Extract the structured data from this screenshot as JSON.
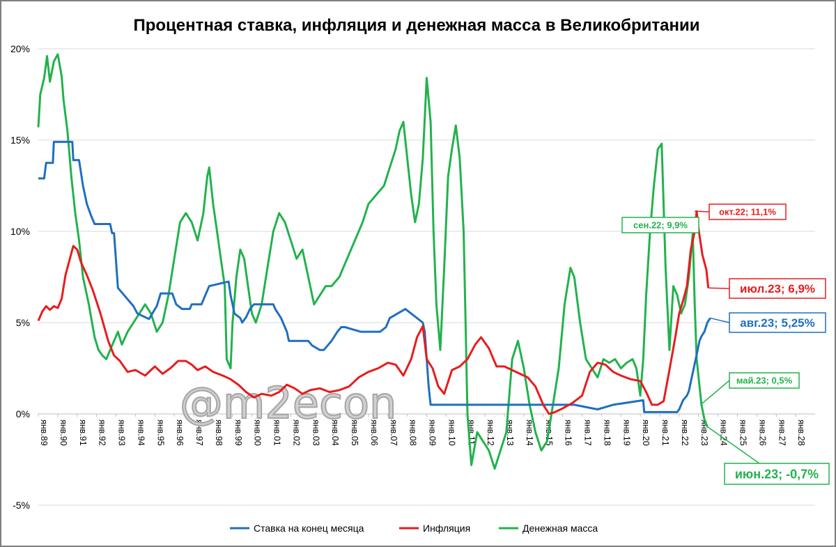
{
  "chart_data": {
    "type": "line",
    "title": "Процентная ставка, инфляция и денежная масса в Великобритании",
    "ylim": [
      -5,
      20
    ],
    "yticks": [
      "-5%",
      "0%",
      "5%",
      "10%",
      "15%",
      "20%"
    ],
    "ytick_values": [
      -5,
      0,
      5,
      10,
      15,
      20
    ],
    "xlim": [
      1989.0,
      2029.0
    ],
    "xticks": [
      "янв.89",
      "янв.90",
      "янв.91",
      "янв.92",
      "янв.93",
      "янв.94",
      "янв.95",
      "янв.96",
      "янв.97",
      "янв.98",
      "янв.99",
      "янв.00",
      "янв.01",
      "янв.02",
      "янв.03",
      "янв.04",
      "янв.05",
      "янв.06",
      "янв.07",
      "янв.08",
      "янв.09",
      "янв.10",
      "янв.11",
      "янв.12",
      "янв.13",
      "янв.14",
      "янв.15",
      "янв.16",
      "янв.17",
      "янв.18",
      "янв.19",
      "янв.20",
      "янв.21",
      "янв.22",
      "янв.23",
      "янв.24",
      "янв.25",
      "янв.26",
      "янв.27",
      "янв.28"
    ],
    "grid": true,
    "legend_position": "bottom",
    "watermark": "@m2econ",
    "series": [
      {
        "name": "Ставка на конец месяца",
        "color": "#1f6fbf",
        "x": [
          1989.0,
          1989.3,
          1989.4,
          1989.75,
          1989.8,
          1990.75,
          1990.8,
          1991.1,
          1991.3,
          1991.5,
          1991.7,
          1991.9,
          1992.7,
          1992.8,
          1992.9,
          1993.1,
          1993.9,
          1994.1,
          1994.7,
          1995.1,
          1995.3,
          1995.9,
          1996.1,
          1996.4,
          1996.8,
          1996.9,
          1997.4,
          1997.6,
          1997.8,
          1998.8,
          1998.9,
          1999.0,
          1999.1,
          1999.4,
          1999.5,
          1999.7,
          1999.9,
          2000.1,
          2001.1,
          2001.2,
          2001.5,
          2001.8,
          2001.9,
          2002.9,
          2003.1,
          2003.5,
          2003.7,
          2003.9,
          2004.1,
          2004.4,
          2004.6,
          2004.8,
          2005.6,
          2006.6,
          2006.9,
          2007.1,
          2007.5,
          2007.9,
          2008.2,
          2008.8,
          2008.9,
          2009.0,
          2009.1,
          2009.2,
          2016.6,
          2017.8,
          2018.6,
          2020.15,
          2020.2,
          2021.9,
          2022.0,
          2022.1,
          2022.2,
          2022.4,
          2022.5,
          2022.6,
          2022.7,
          2022.85,
          2022.95,
          2023.05,
          2023.15,
          2023.3,
          2023.45,
          2023.6
        ],
        "values": [
          12.9,
          12.9,
          13.75,
          13.75,
          14.9,
          14.9,
          13.9,
          13.9,
          12.5,
          11.5,
          10.9,
          10.4,
          10.4,
          9.9,
          9.9,
          6.9,
          5.9,
          5.5,
          5.2,
          5.9,
          6.6,
          6.6,
          6.0,
          5.75,
          5.75,
          6.0,
          6.0,
          6.5,
          7.0,
          7.25,
          6.5,
          6.0,
          5.5,
          5.25,
          5.0,
          5.3,
          5.75,
          6.0,
          6.0,
          5.75,
          5.25,
          4.5,
          4.0,
          4.0,
          3.75,
          3.5,
          3.5,
          3.75,
          4.0,
          4.5,
          4.75,
          4.75,
          4.5,
          4.5,
          4.75,
          5.25,
          5.5,
          5.75,
          5.5,
          5.0,
          4.5,
          3.0,
          1.5,
          0.5,
          0.5,
          0.25,
          0.5,
          0.75,
          0.1,
          0.1,
          0.25,
          0.5,
          0.75,
          1.0,
          1.25,
          1.75,
          2.25,
          3.0,
          3.5,
          4.0,
          4.25,
          4.5,
          5.0,
          5.25
        ]
      },
      {
        "name": "Инфляция",
        "color": "#e81c1c",
        "x": [
          1989.0,
          1989.2,
          1989.4,
          1989.6,
          1989.8,
          1990.0,
          1990.2,
          1990.4,
          1990.6,
          1990.8,
          1991.0,
          1991.2,
          1991.5,
          1991.8,
          1992.2,
          1992.6,
          1992.9,
          1993.2,
          1993.6,
          1994.0,
          1994.5,
          1995.0,
          1995.4,
          1995.8,
          1996.2,
          1996.6,
          1996.9,
          1997.2,
          1997.6,
          1998.0,
          1998.5,
          1998.9,
          1999.3,
          1999.7,
          2000.1,
          2000.5,
          2001.0,
          2001.4,
          2001.8,
          2002.2,
          2002.6,
          2003.0,
          2003.5,
          2004.0,
          2004.5,
          2005.0,
          2005.5,
          2006.0,
          2006.5,
          2007.0,
          2007.4,
          2007.8,
          2008.2,
          2008.5,
          2008.8,
          2009.0,
          2009.3,
          2009.6,
          2009.9,
          2010.3,
          2010.7,
          2011.1,
          2011.5,
          2011.8,
          2012.2,
          2012.6,
          2013.0,
          2013.4,
          2013.8,
          2014.2,
          2014.6,
          2015.0,
          2015.3,
          2015.6,
          2016.0,
          2016.5,
          2017.0,
          2017.4,
          2017.8,
          2018.2,
          2018.6,
          2019.0,
          2019.5,
          2020.0,
          2020.3,
          2020.6,
          2020.9,
          2021.2,
          2021.5,
          2021.8,
          2022.0,
          2022.2,
          2022.4,
          2022.6,
          2022.8,
          2022.9,
          2023.0,
          2023.2,
          2023.4,
          2023.5
        ],
        "values": [
          5.1,
          5.6,
          5.9,
          5.7,
          5.9,
          5.8,
          6.3,
          7.6,
          8.4,
          9.2,
          9.0,
          8.3,
          7.6,
          6.8,
          5.5,
          4.0,
          3.2,
          2.9,
          2.3,
          2.4,
          2.1,
          2.6,
          2.2,
          2.5,
          2.9,
          2.9,
          2.7,
          2.4,
          2.6,
          2.3,
          2.1,
          1.9,
          1.6,
          1.2,
          0.9,
          1.1,
          1.0,
          1.2,
          1.6,
          1.4,
          1.1,
          1.3,
          1.4,
          1.2,
          1.3,
          1.5,
          2.0,
          2.3,
          2.5,
          2.8,
          2.7,
          2.1,
          3.0,
          4.2,
          4.8,
          3.0,
          2.5,
          1.5,
          1.1,
          2.4,
          2.6,
          3.0,
          3.8,
          4.2,
          3.6,
          2.6,
          2.6,
          2.4,
          2.2,
          2.0,
          1.5,
          0.5,
          0.0,
          0.1,
          0.3,
          0.6,
          1.0,
          2.3,
          2.8,
          2.7,
          2.3,
          2.1,
          1.9,
          1.8,
          1.2,
          0.5,
          0.5,
          0.7,
          2.4,
          4.2,
          5.5,
          6.2,
          7.0,
          9.0,
          10.0,
          11.1,
          10.1,
          8.7,
          7.9,
          6.9
        ]
      },
      {
        "name": "Денежная масса",
        "color": "#22b24c",
        "x": [
          1989.0,
          1989.1,
          1989.3,
          1989.45,
          1989.6,
          1989.8,
          1990.0,
          1990.2,
          1990.3,
          1990.5,
          1990.7,
          1990.9,
          1991.1,
          1991.3,
          1991.6,
          1991.9,
          1992.1,
          1992.3,
          1992.5,
          1992.7,
          1992.9,
          1993.1,
          1993.3,
          1993.6,
          1993.9,
          1994.2,
          1994.5,
          1994.8,
          1995.1,
          1995.4,
          1995.7,
          1996.0,
          1996.3,
          1996.6,
          1996.9,
          1997.2,
          1997.4,
          1997.5,
          1997.6,
          1997.7,
          1997.8,
          1997.9,
          1998.0,
          1998.2,
          1998.4,
          1998.6,
          1998.7,
          1998.9,
          1999.0,
          1999.2,
          1999.4,
          1999.6,
          1999.8,
          2000.0,
          2000.2,
          2000.5,
          2000.8,
          2001.1,
          2001.4,
          2001.7,
          2002.0,
          2002.3,
          2002.6,
          2002.9,
          2003.2,
          2003.5,
          2003.8,
          2004.1,
          2004.5,
          2004.9,
          2005.3,
          2005.7,
          2006.0,
          2006.4,
          2006.8,
          2007.1,
          2007.4,
          2007.6,
          2007.8,
          2008.0,
          2008.2,
          2008.4,
          2008.6,
          2008.8,
          2009.0,
          2009.2,
          2009.35,
          2009.5,
          2009.7,
          2009.9,
          2010.1,
          2010.3,
          2010.5,
          2010.7,
          2010.9,
          2011.0,
          2011.1,
          2011.3,
          2011.6,
          2011.9,
          2012.2,
          2012.5,
          2012.8,
          2013.1,
          2013.4,
          2013.7,
          2014.0,
          2014.3,
          2014.6,
          2014.9,
          2015.2,
          2015.5,
          2015.8,
          2016.1,
          2016.4,
          2016.6,
          2016.9,
          2017.2,
          2017.5,
          2017.8,
          2018.1,
          2018.4,
          2018.7,
          2019.0,
          2019.3,
          2019.6,
          2019.8,
          2020.0,
          2020.15,
          2020.3,
          2020.5,
          2020.7,
          2020.9,
          2021.1,
          2021.3,
          2021.5,
          2021.7,
          2021.9,
          2022.1,
          2022.3,
          2022.5,
          2022.7,
          2022.8,
          2022.9,
          2023.0,
          2023.15,
          2023.3,
          2023.45
        ],
        "values": [
          15.7,
          17.5,
          18.4,
          19.6,
          18.2,
          19.3,
          19.7,
          18.5,
          17.2,
          15.5,
          13.0,
          11.0,
          9.5,
          7.5,
          6.0,
          4.2,
          3.5,
          3.2,
          3.0,
          3.5,
          4.0,
          4.5,
          3.8,
          4.5,
          5.0,
          5.5,
          6.0,
          5.5,
          4.5,
          5.0,
          6.5,
          8.5,
          10.5,
          11.0,
          10.5,
          9.5,
          10.5,
          11.0,
          12.0,
          13.0,
          13.5,
          12.5,
          11.5,
          10.0,
          8.5,
          7.0,
          3.0,
          2.5,
          5.0,
          7.5,
          9.0,
          8.5,
          7.0,
          5.5,
          5.0,
          6.0,
          8.0,
          10.0,
          11.0,
          10.5,
          9.5,
          8.5,
          9.0,
          7.5,
          6.0,
          6.5,
          7.0,
          7.0,
          7.5,
          8.5,
          9.5,
          10.5,
          11.5,
          12.0,
          12.5,
          13.5,
          14.5,
          15.5,
          16.0,
          14.0,
          12.0,
          10.5,
          11.5,
          14.0,
          18.4,
          16.0,
          10.0,
          6.0,
          3.5,
          8.0,
          13.0,
          14.5,
          15.8,
          14.0,
          10.0,
          5.0,
          0.0,
          -2.8,
          -1.0,
          -1.5,
          -2.0,
          -3.0,
          -2.0,
          -1.0,
          3.0,
          4.0,
          2.5,
          0.5,
          -1.0,
          -2.0,
          -1.5,
          0.5,
          2.5,
          6.0,
          8.0,
          7.5,
          5.0,
          3.0,
          2.5,
          2.0,
          3.0,
          2.8,
          3.0,
          2.5,
          2.8,
          3.0,
          2.5,
          1.0,
          3.0,
          6.5,
          10.0,
          12.5,
          14.5,
          14.8,
          8.0,
          3.5,
          7.0,
          6.5,
          5.5,
          6.0,
          7.5,
          9.9,
          6.0,
          3.0,
          2.0,
          0.5,
          -0.3,
          -0.7
        ]
      }
    ],
    "annotations": [
      {
        "text": "окт.22; 11,1%",
        "color": "#e81c1c"
      },
      {
        "text": "сен.22; 9,9%",
        "color": "#22b24c"
      },
      {
        "text": "июл.23; 6,9%",
        "color": "#e81c1c"
      },
      {
        "text": "авг.23; 5,25%",
        "color": "#1f6fbf"
      },
      {
        "text": "май.23; 0,5%",
        "color": "#22b24c"
      },
      {
        "text": "июн.23; -0,7%",
        "color": "#22b24c"
      }
    ]
  }
}
